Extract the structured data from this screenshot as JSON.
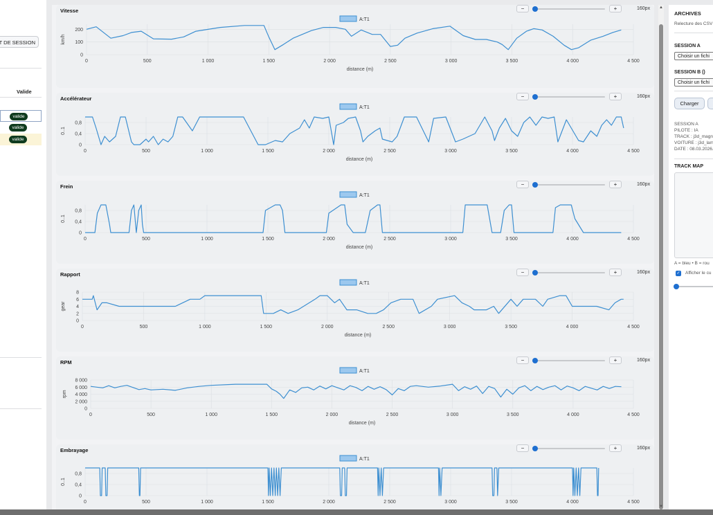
{
  "left": {
    "start_label": "RT DE SESSION",
    "col_header": "Valide",
    "rows": [
      {
        "badge": "valide",
        "state": "selected"
      },
      {
        "badge": "valide",
        "state": "normal"
      },
      {
        "badge": "valide",
        "state": "highlighted"
      }
    ]
  },
  "panels": [
    {
      "title": "Vitesse",
      "legend": "A:T1",
      "ylabel": "km/h",
      "xlabel": "distance (m)",
      "zoom": "160px"
    },
    {
      "title": "Accélérateur",
      "legend": "A:T1",
      "ylabel": "0..1",
      "xlabel": "distance (m)",
      "zoom": "160px"
    },
    {
      "title": "Frein",
      "legend": "A:T1",
      "ylabel": "0..1",
      "xlabel": "distance (m)",
      "zoom": "160px"
    },
    {
      "title": "Rapport",
      "legend": "A:T1",
      "ylabel": "gear",
      "xlabel": "distance (m)",
      "zoom": "160px"
    },
    {
      "title": "RPM",
      "legend": "A:T1",
      "ylabel": "rpm",
      "xlabel": "distance (m)",
      "zoom": "160px"
    },
    {
      "title": "Embrayage",
      "legend": "A:T1",
      "ylabel": "0..1",
      "xlabel": "",
      "zoom": "160px"
    }
  ],
  "zoom_minus": "−",
  "zoom_plus": "+",
  "chart_data": [
    {
      "type": "line",
      "title": "Vitesse",
      "series": [
        {
          "name": "A:T1"
        }
      ],
      "xlabel": "distance (m)",
      "ylabel": "km/h",
      "x_ticks": [
        "0",
        "500",
        "1 000",
        "1 500",
        "2 000",
        "2 500",
        "3 000",
        "3 500",
        "4 000",
        "4 500"
      ],
      "y_ticks": [
        "0",
        "100",
        "200"
      ],
      "xlim": [
        0,
        4500
      ],
      "ylim": [
        0,
        240
      ],
      "x": [
        0,
        80,
        200,
        300,
        370,
        450,
        550,
        700,
        800,
        900,
        1100,
        1300,
        1400,
        1460,
        1500,
        1550,
        1620,
        1700,
        1850,
        1950,
        2050,
        2130,
        2180,
        2260,
        2350,
        2420,
        2500,
        2560,
        2620,
        2720,
        2850,
        2990,
        3100,
        3200,
        3290,
        3380,
        3420,
        3470,
        3540,
        3620,
        3680,
        3750,
        3840,
        3930,
        3990,
        4050,
        4150,
        4250,
        4330,
        4400
      ],
      "y": [
        200,
        220,
        130,
        150,
        175,
        185,
        125,
        122,
        140,
        185,
        215,
        230,
        230,
        230,
        140,
        40,
        80,
        130,
        190,
        215,
        215,
        200,
        145,
        195,
        160,
        160,
        65,
        75,
        130,
        170,
        205,
        225,
        150,
        120,
        120,
        100,
        80,
        40,
        130,
        185,
        205,
        195,
        145,
        75,
        40,
        55,
        115,
        145,
        175,
        195
      ]
    },
    {
      "type": "line",
      "title": "Accélérateur",
      "series": [
        {
          "name": "A:T1"
        }
      ],
      "xlabel": "distance (m)",
      "ylabel": "0..1",
      "x_ticks": [
        "0",
        "500",
        "1 000",
        "1 500",
        "2 000",
        "2 500",
        "3 000",
        "3 500",
        "4 000",
        "4 500"
      ],
      "y_ticks": [
        "0",
        "0,4",
        "0,8"
      ],
      "xlim": [
        0,
        4500
      ],
      "ylim": [
        0,
        1
      ],
      "x": [
        0,
        60,
        90,
        130,
        160,
        200,
        250,
        290,
        330,
        380,
        400,
        450,
        500,
        520,
        560,
        600,
        640,
        680,
        720,
        760,
        800,
        880,
        940,
        1000,
        1300,
        1420,
        1450,
        1480,
        1560,
        1620,
        1680,
        1760,
        1800,
        1840,
        1880,
        1950,
        2000,
        2040,
        2060,
        2120,
        2160,
        2220,
        2260,
        2280,
        2320,
        2380,
        2420,
        2440,
        2520,
        2560,
        2620,
        2720,
        2820,
        2860,
        2960,
        3040,
        3100,
        3200,
        3280,
        3340,
        3360,
        3400,
        3450,
        3500,
        3550,
        3600,
        3650,
        3700,
        3750,
        3800,
        3850,
        3880,
        3950,
        4050,
        4090,
        4150,
        4200,
        4240,
        4280,
        4320,
        4360,
        4400,
        4420
      ],
      "y": [
        1,
        1,
        0.6,
        0,
        0.3,
        0.1,
        0.3,
        1,
        1,
        0.1,
        0,
        0,
        0.2,
        0.1,
        0.3,
        0,
        0.2,
        0.1,
        0.3,
        1,
        1,
        0.5,
        1,
        1,
        1,
        0,
        0,
        0,
        0.15,
        0.1,
        0.4,
        0.6,
        0.9,
        0.6,
        1,
        0.95,
        1,
        0,
        0.7,
        0.8,
        0.95,
        1,
        0.5,
        0.1,
        0.3,
        0.5,
        0.6,
        0.2,
        0.1,
        0.3,
        1,
        1,
        0.1,
        0.95,
        1,
        0.1,
        0.2,
        0.4,
        1,
        0.5,
        0.15,
        0.6,
        0.95,
        0.5,
        0.3,
        0.8,
        1,
        0.7,
        1,
        0.95,
        1,
        0.1,
        0.9,
        0.15,
        0.1,
        0.5,
        0.3,
        0.7,
        0.9,
        0.7,
        1,
        1,
        0.6
      ]
    },
    {
      "type": "line",
      "title": "Frein",
      "series": [
        {
          "name": "A:T1"
        }
      ],
      "xlabel": "distance (m)",
      "ylabel": "0..1",
      "x_ticks": [
        "0",
        "500",
        "1 000",
        "1 500",
        "2 000",
        "2 500",
        "3 000",
        "3 500",
        "4 000",
        "4 500"
      ],
      "y_ticks": [
        "0",
        "0,4",
        "0,8"
      ],
      "xlim": [
        0,
        4500
      ],
      "ylim": [
        0,
        1
      ],
      "x": [
        0,
        80,
        100,
        130,
        170,
        200,
        210,
        360,
        380,
        400,
        420,
        440,
        460,
        470,
        480,
        500,
        1400,
        1460,
        1480,
        1560,
        1600,
        1620,
        1640,
        1960,
        1980,
        2000,
        2100,
        2130,
        2150,
        2200,
        2240,
        2260,
        2300,
        2340,
        2400,
        2420,
        2440,
        2560,
        2600,
        2700,
        2800,
        2840,
        3100,
        3120,
        3150,
        3200,
        3300,
        3340,
        3400,
        3410,
        3440,
        3480,
        3500,
        3520,
        3580,
        3640,
        3700,
        3800,
        3840,
        3860,
        3900,
        3990,
        4020,
        4090,
        4100,
        4120,
        4200,
        4400
      ],
      "y": [
        0,
        0,
        0.7,
        1,
        1,
        0.3,
        0,
        0,
        0.8,
        1,
        0,
        0.8,
        1,
        0.3,
        0,
        0,
        0,
        0,
        0.8,
        1,
        1,
        0.8,
        0,
        0,
        0,
        0.7,
        1,
        1,
        0.3,
        0,
        0,
        0,
        0,
        0.8,
        1,
        1,
        0,
        0,
        0,
        0,
        0,
        0,
        0,
        1,
        1,
        1,
        1,
        0,
        0,
        0,
        0.8,
        1,
        1,
        0,
        0,
        0,
        0,
        0,
        0,
        0.9,
        1,
        1,
        0.5,
        0,
        0,
        0,
        0,
        0
      ]
    },
    {
      "type": "line",
      "title": "Rapport",
      "series": [
        {
          "name": "A:T1"
        }
      ],
      "xlabel": "distance (m)",
      "ylabel": "gear",
      "x_ticks": [
        "0",
        "500",
        "1 000",
        "1 500",
        "2 000",
        "2 500",
        "3 000",
        "3 500",
        "4 000",
        "4 500"
      ],
      "y_ticks": [
        "0",
        "2",
        "4",
        "6",
        "8"
      ],
      "xlim": [
        0,
        4500
      ],
      "ylim": [
        0,
        8
      ],
      "x": [
        0,
        80,
        90,
        120,
        160,
        180,
        200,
        300,
        380,
        420,
        700,
        760,
        880,
        960,
        1000,
        1460,
        1480,
        1560,
        1620,
        1680,
        1760,
        1900,
        1940,
        2000,
        2060,
        2100,
        2160,
        2240,
        2330,
        2400,
        2460,
        2520,
        2600,
        2700,
        2750,
        2850,
        2900,
        3040,
        3100,
        3160,
        3200,
        3300,
        3360,
        3400,
        3500,
        3550,
        3600,
        3700,
        3760,
        3800,
        3900,
        3950,
        4000,
        4100,
        4200,
        4300,
        4350,
        4400,
        4420
      ],
      "y": [
        6,
        6,
        7,
        3,
        5,
        5,
        5,
        4,
        4,
        4,
        4,
        4,
        6,
        6,
        7,
        7,
        2,
        2,
        3,
        2,
        3,
        6,
        7,
        7,
        5,
        6,
        3,
        3,
        2,
        2,
        3,
        5,
        6,
        6,
        2,
        4,
        6,
        7,
        5,
        4,
        3,
        3,
        4,
        2,
        6,
        4,
        6,
        6,
        4,
        6,
        7,
        7,
        4,
        4,
        4,
        3,
        5,
        6,
        6
      ]
    },
    {
      "type": "line",
      "title": "RPM",
      "series": [
        {
          "name": "A:T1"
        }
      ],
      "xlabel": "distance (m)",
      "ylabel": "rpm",
      "x_ticks": [
        "0",
        "500",
        "1 000",
        "1 500",
        "2 000",
        "2 500",
        "3 000",
        "3 500",
        "4 000",
        "4 500"
      ],
      "y_ticks": [
        "0",
        "2 000",
        "4 000",
        "6 000",
        "8 000"
      ],
      "xlim": [
        0,
        4500
      ],
      "ylim": [
        0,
        8000
      ],
      "x": [
        0,
        50,
        100,
        150,
        200,
        250,
        300,
        400,
        450,
        500,
        600,
        700,
        800,
        900,
        1000,
        1200,
        1300,
        1400,
        1460,
        1500,
        1540,
        1570,
        1600,
        1650,
        1700,
        1750,
        1800,
        1850,
        1900,
        1950,
        2000,
        2050,
        2100,
        2150,
        2200,
        2250,
        2300,
        2350,
        2400,
        2450,
        2500,
        2550,
        2600,
        2650,
        2700,
        2800,
        2900,
        3000,
        3050,
        3100,
        3150,
        3200,
        3250,
        3300,
        3350,
        3400,
        3450,
        3500,
        3550,
        3600,
        3650,
        3700,
        3750,
        3800,
        3850,
        3900,
        3950,
        4000,
        4050,
        4100,
        4150,
        4200,
        4250,
        4300,
        4350,
        4400
      ],
      "y": [
        6200,
        6000,
        5800,
        6400,
        5800,
        6200,
        6500,
        5300,
        5600,
        5200,
        5400,
        5100,
        5800,
        6200,
        6500,
        6800,
        6800,
        6800,
        6800,
        5500,
        4800,
        4000,
        2800,
        5200,
        4500,
        5800,
        6000,
        5200,
        6300,
        5500,
        6400,
        5800,
        5200,
        6400,
        5900,
        5000,
        6200,
        5400,
        6100,
        5300,
        3800,
        5600,
        5000,
        6200,
        6400,
        6000,
        6300,
        6800,
        5000,
        6100,
        5400,
        6300,
        4200,
        6200,
        5600,
        3200,
        5400,
        4000,
        5800,
        6400,
        5000,
        6200,
        5300,
        6000,
        6400,
        5200,
        6300,
        5800,
        5000,
        6200,
        5700,
        5200,
        6200,
        5600,
        6200,
        6100
      ]
    },
    {
      "type": "line",
      "title": "Embrayage",
      "series": [
        {
          "name": "A:T1"
        }
      ],
      "xlabel": "",
      "ylabel": "0..1",
      "x_ticks": [
        "0",
        "500",
        "1 000",
        "1 500",
        "2 000",
        "2 500",
        "3 000",
        "3 500",
        "4 000",
        "4 500"
      ],
      "y_ticks": [
        "0",
        "0,4",
        "0,8"
      ],
      "xlim": [
        0,
        4500
      ],
      "ylim": [
        0,
        1
      ],
      "x": [
        0,
        120,
        125,
        135,
        140,
        165,
        170,
        180,
        185,
        440,
        445,
        450,
        455,
        1500,
        1505,
        1510,
        1520,
        1530,
        1540,
        1550,
        1560,
        1570,
        1580,
        1590,
        1600,
        1610,
        2090,
        2095,
        2105,
        2110,
        2130,
        2135,
        2145,
        2150,
        2400,
        2405,
        2410,
        2420,
        2430,
        2440,
        2450,
        2900,
        2905,
        2910,
        2920,
        2930,
        2935,
        3340,
        3345,
        3355,
        3360,
        3380,
        3385,
        3395,
        4000,
        4005,
        4010,
        4020,
        4030,
        4040,
        4050,
        4060,
        4070,
        4200,
        4205,
        4210,
        4215
      ],
      "y": [
        1,
        1,
        0,
        0,
        1,
        1,
        0,
        0,
        1,
        1,
        0,
        0,
        1,
        1,
        0,
        1,
        0,
        1,
        0,
        1,
        0,
        1,
        0,
        1,
        0,
        1,
        1,
        0,
        0,
        1,
        1,
        0,
        0,
        1,
        1,
        0,
        1,
        0,
        1,
        0,
        1,
        1,
        0,
        1,
        0,
        1,
        1,
        1,
        0,
        0,
        1,
        1,
        0,
        1,
        1,
        0,
        1,
        0,
        1,
        0,
        1,
        0,
        1,
        1,
        0,
        0,
        1
      ]
    }
  ],
  "right": {
    "title": "ARCHIVES",
    "subtitle": "Relecture des CSV",
    "session_a_label": "SESSION A",
    "session_a_select": "Choisir un fichi",
    "session_b_label": "SESSION B ()",
    "session_b_select": "Choisir un fichi",
    "load_button": "Charger",
    "info": [
      "SESSION A",
      "PILOTE : IA",
      "TRACK : j3d_magn",
      "VOITURE : j3d_lam",
      "DATE : 08.03.2026."
    ],
    "track_map_label": "TRACK MAP",
    "track_map_note": "A = bleu • B = rou",
    "show_cursor_label": "Afficher le cu"
  },
  "colors": {
    "series": "#3d8fd1",
    "legend_fill": "#9cc8ee"
  }
}
